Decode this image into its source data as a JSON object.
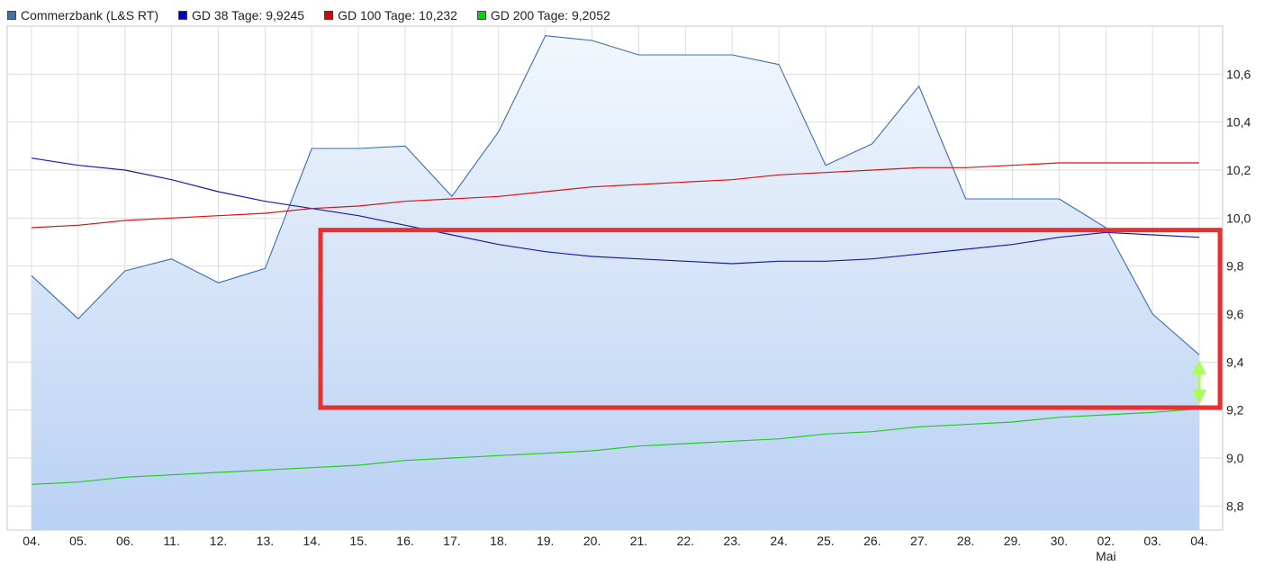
{
  "legend": [
    {
      "label": "Commerzbank (L&S RT)",
      "color": "#3f6fb4",
      "icon": "square-swatch"
    },
    {
      "label": "GD 38 Tage: 9,9245",
      "color": "#0000cc",
      "icon": "square-swatch"
    },
    {
      "label": "GD 100 Tage: 10,232",
      "color": "#dd0000",
      "icon": "square-swatch"
    },
    {
      "label": "GD 200 Tage: 9,2052",
      "color": "#11cc11",
      "icon": "square-swatch"
    }
  ],
  "chart_data": {
    "type": "area",
    "categories": [
      "04.",
      "05.",
      "06.",
      "11.",
      "12.",
      "13.",
      "14.",
      "15.",
      "16.",
      "17.",
      "18.",
      "19.",
      "20.",
      "21.",
      "22.",
      "23.",
      "24.",
      "25.",
      "26.",
      "27.",
      "28.",
      "29.",
      "30.",
      "02.",
      "03.",
      "04."
    ],
    "month_label": {
      "index": 23,
      "text": "Mai"
    },
    "ylim": [
      8.7,
      10.8
    ],
    "yticks": [
      8.8,
      9.0,
      9.2,
      9.4,
      9.6,
      9.8,
      10.0,
      10.2,
      10.4,
      10.6
    ],
    "ytick_labels": [
      "8,8",
      "9,0",
      "9,2",
      "9,4",
      "9,6",
      "9,8",
      "10,0",
      "10,2",
      "10,4",
      "10,6"
    ],
    "grid": true,
    "legend_position": "top-left",
    "series": [
      {
        "name": "Commerzbank (L&S RT)",
        "style": "area",
        "color": "#3c6db4",
        "values": [
          9.76,
          9.58,
          9.78,
          9.83,
          9.73,
          9.79,
          10.29,
          10.29,
          10.3,
          10.09,
          10.36,
          10.76,
          10.74,
          10.68,
          10.68,
          10.68,
          10.64,
          10.22,
          10.31,
          10.55,
          10.08,
          10.08,
          10.08,
          9.96,
          9.6,
          9.43
        ]
      },
      {
        "name": "GD 38 Tage: 9,9245",
        "style": "line",
        "color": "#1a1aaa",
        "values": [
          10.25,
          10.22,
          10.2,
          10.16,
          10.11,
          10.07,
          10.04,
          10.01,
          9.97,
          9.93,
          9.89,
          9.86,
          9.84,
          9.83,
          9.82,
          9.81,
          9.82,
          9.82,
          9.83,
          9.85,
          9.87,
          9.89,
          9.92,
          9.94,
          9.93,
          9.92
        ]
      },
      {
        "name": "GD 100 Tage: 10,232",
        "style": "line",
        "color": "#dd1111",
        "values": [
          9.96,
          9.97,
          9.99,
          10.0,
          10.01,
          10.02,
          10.04,
          10.05,
          10.07,
          10.08,
          10.09,
          10.11,
          10.13,
          10.14,
          10.15,
          10.16,
          10.18,
          10.19,
          10.2,
          10.21,
          10.21,
          10.22,
          10.23,
          10.23,
          10.23,
          10.23
        ]
      },
      {
        "name": "GD 200 Tage: 9,2052",
        "style": "line",
        "color": "#22cc22",
        "values": [
          8.89,
          8.9,
          8.92,
          8.93,
          8.94,
          8.95,
          8.96,
          8.97,
          8.99,
          9.0,
          9.01,
          9.02,
          9.03,
          9.05,
          9.06,
          9.07,
          9.08,
          9.1,
          9.11,
          9.13,
          9.14,
          9.15,
          9.17,
          9.18,
          9.19,
          9.205
        ]
      }
    ],
    "annotations": [
      {
        "kind": "highlight-rectangle",
        "color": "#e83030",
        "x_from_index": 6,
        "x_to_index": 25,
        "y_from": 9.21,
        "y_to": 9.95
      },
      {
        "kind": "double-arrow",
        "color": "#aaff55",
        "x_index": 25,
        "y_from": 9.43,
        "y_to": 9.21
      }
    ]
  }
}
